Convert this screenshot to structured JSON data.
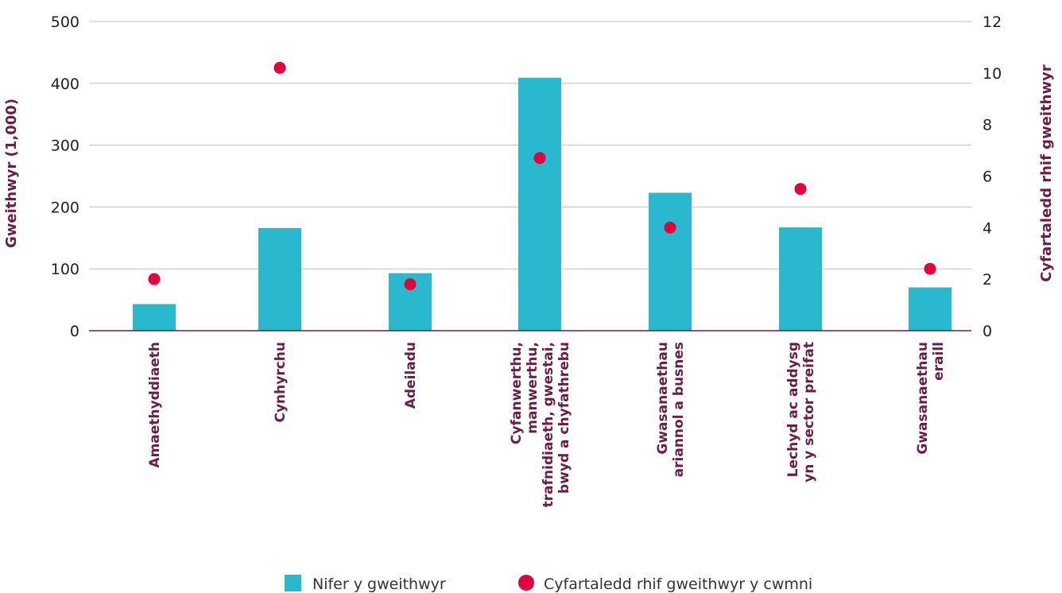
{
  "chart_data": {
    "type": "bar",
    "categories": [
      [
        "Amaethyddiaeth"
      ],
      [
        "Cynhyrchu"
      ],
      [
        "Adeiladu"
      ],
      [
        "Cyfanwerthu,",
        "manwerthu,",
        "trafnidiaeth, gwestai,",
        "bwyd a chyfathrebu"
      ],
      [
        "Gwasanaethau",
        "ariannol a busnes"
      ],
      [
        "Lechyd ac addysg",
        "yn y sector preifat"
      ],
      [
        "Gwasanaethau",
        "eraill"
      ]
    ],
    "series": [
      {
        "name": "Nifer y gweithwyr",
        "type": "bar",
        "axis": "left",
        "values": [
          43,
          166,
          93,
          409,
          223,
          167,
          70
        ]
      },
      {
        "name": "Cyfartaledd rhif gweithwyr y cwmni",
        "type": "scatter",
        "axis": "right",
        "values": [
          2.0,
          10.2,
          1.8,
          6.7,
          4.0,
          5.5,
          2.4
        ]
      }
    ],
    "ylabel": "Gweithwyr (1,000)",
    "y2label": "Cyfartaledd rhif gweithwyr",
    "ylim": [
      0,
      500
    ],
    "y2lim": [
      0,
      12
    ],
    "yticks": [
      "0",
      "100",
      "200",
      "300",
      "400",
      "500"
    ],
    "y2ticks": [
      "0",
      "2",
      "4",
      "6",
      "8",
      "10",
      "12"
    ],
    "grid": true,
    "legend_position": "bottom",
    "colors": {
      "bar": "#29b8ce",
      "dot": "#e3003f",
      "axis_title": "#6b1d45",
      "grid": "#bfbfbf",
      "baseline": "#6b1d45"
    }
  }
}
